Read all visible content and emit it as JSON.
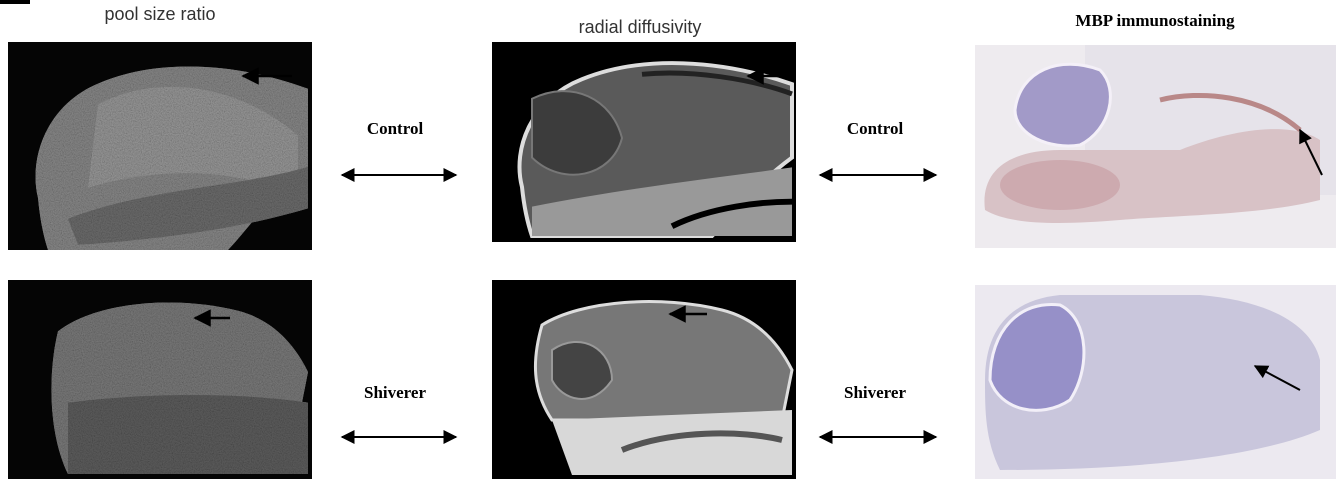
{
  "figure": {
    "columns": [
      {
        "title": "pool size ratio"
      },
      {
        "title": "radial diffusivity"
      },
      {
        "title": "MBP immunostaining"
      }
    ],
    "rows": [
      {
        "labels": [
          "Control",
          "Control"
        ]
      },
      {
        "labels": [
          "Shiverer",
          "Shiverer"
        ]
      }
    ]
  }
}
